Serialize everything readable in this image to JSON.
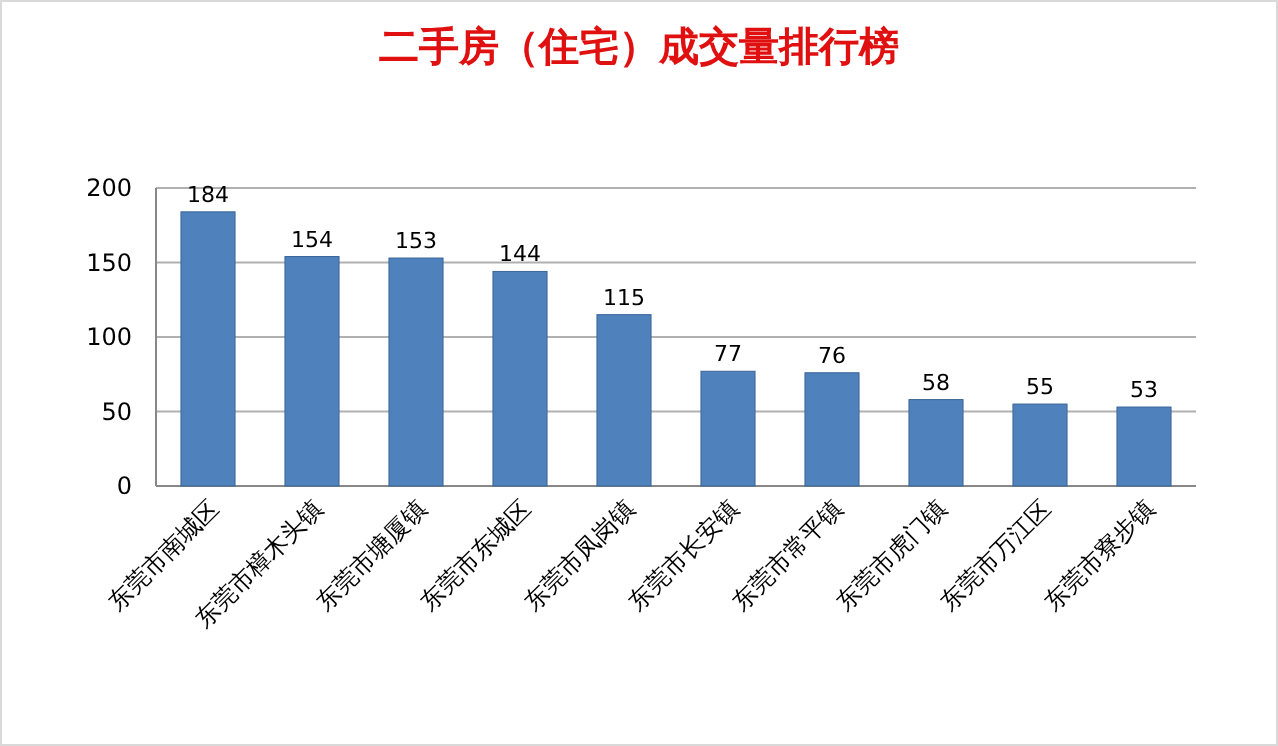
{
  "chart_data": {
    "type": "bar",
    "title": "二手房（住宅）成交量排行榜",
    "categories": [
      "东莞市南城区",
      "东莞市樟木头镇",
      "东莞市塘厦镇",
      "东莞市东城区",
      "东莞市凤岗镇",
      "东莞市长安镇",
      "东莞市常平镇",
      "东莞市虎门镇",
      "东莞市万江区",
      "东莞市寮步镇"
    ],
    "values": [
      184,
      154,
      153,
      144,
      115,
      77,
      76,
      58,
      55,
      53
    ],
    "color": "#4f81bd",
    "ylim": [
      0,
      200
    ],
    "yticks": [
      0,
      50,
      100,
      150,
      200
    ],
    "grid": "y",
    "data_labels": true
  }
}
